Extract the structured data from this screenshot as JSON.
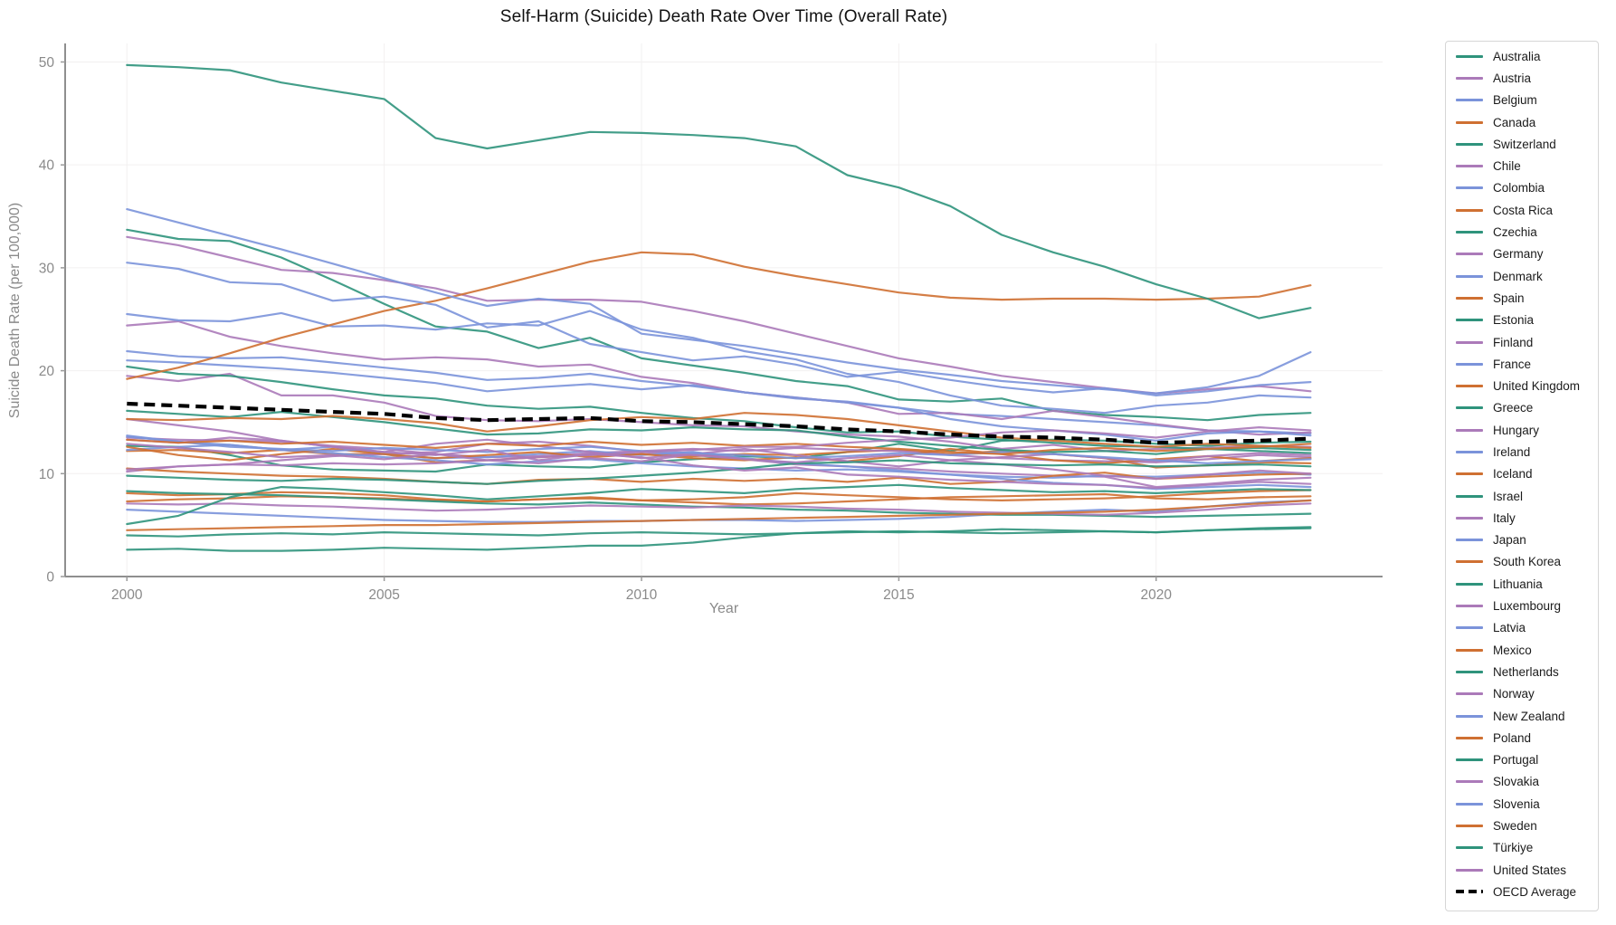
{
  "figure": {
    "title": "Self-Harm (Suicide) Death Rate Over Time (Overall Rate)",
    "xlabel": "Year",
    "ylabel": "Suicide Death Rate (per 100,000)"
  },
  "palette": {
    "teal": "#2f937c",
    "purple": "#ab7ab9",
    "blue": "#7b93da",
    "orange": "#cf7032",
    "oecd": "#000000"
  },
  "axis_style": {
    "spine_color": "#8f8f8f",
    "tick_color": "#9a9a9a",
    "tick_label_color": "#8a8a8a",
    "grid_color": "#f2f0f0"
  },
  "chart_data": {
    "type": "line",
    "title": "Self-Harm (Suicide) Death Rate Over Time (Overall Rate)",
    "xlabel": "Year",
    "ylabel": "Suicide Death Rate (per 100,000)",
    "grid": true,
    "legend_position": "right",
    "xlim": [
      1998.8,
      2024.4
    ],
    "ylim": [
      0,
      51.8
    ],
    "x_ticks": [
      2000,
      2005,
      2010,
      2015,
      2020
    ],
    "y_ticks": [
      0,
      10,
      20,
      30,
      40,
      50
    ],
    "x": [
      2000,
      2001,
      2002,
      2003,
      2004,
      2005,
      2006,
      2007,
      2008,
      2009,
      2010,
      2011,
      2012,
      2013,
      2014,
      2015,
      2016,
      2017,
      2018,
      2019,
      2020,
      2021,
      2022,
      2023
    ],
    "series": [
      {
        "name": "Australia",
        "color": "teal",
        "values": [
          12.7,
          12.6,
          11.8,
          10.8,
          10.4,
          10.3,
          10.2,
          10.9,
          10.7,
          10.6,
          11.1,
          11.4,
          11.7,
          11.5,
          12.1,
          12.9,
          12.2,
          13.2,
          13.3,
          13.2,
          12.9,
          12.7,
          13.0,
          13.1
        ]
      },
      {
        "name": "Austria",
        "color": "purple",
        "values": [
          19.5,
          19.0,
          19.7,
          17.6,
          17.6,
          16.9,
          15.6,
          15.2,
          15.1,
          15.3,
          15.0,
          14.7,
          14.6,
          14.1,
          13.8,
          13.6,
          13.1,
          12.4,
          12.8,
          12.2,
          12.4,
          12.5,
          12.7,
          12.6
        ]
      },
      {
        "name": "Belgium",
        "color": "blue",
        "values": [
          21.0,
          20.8,
          20.5,
          20.2,
          19.8,
          19.3,
          18.8,
          18.0,
          18.4,
          18.7,
          18.2,
          18.6,
          17.9,
          17.3,
          17.0,
          16.4,
          15.8,
          15.6,
          15.3,
          15.0,
          14.7,
          14.2,
          14.1,
          13.9
        ]
      },
      {
        "name": "Canada",
        "color": "orange",
        "values": [
          12.2,
          12.3,
          12.0,
          12.3,
          11.9,
          11.9,
          11.1,
          11.3,
          11.6,
          11.8,
          11.9,
          11.7,
          11.9,
          11.8,
          12.1,
          12.3,
          11.9,
          12.2,
          11.9,
          11.5,
          10.6,
          10.8,
          11.1,
          11.0
        ]
      },
      {
        "name": "Switzerland",
        "color": "teal",
        "values": [
          20.4,
          19.7,
          19.5,
          18.9,
          18.2,
          17.6,
          17.3,
          16.6,
          16.3,
          16.5,
          15.9,
          15.4,
          15.1,
          14.5,
          14.0,
          14.1,
          13.6,
          13.3,
          13.0,
          12.7,
          12.6,
          12.4,
          12.5,
          12.3
        ]
      },
      {
        "name": "Chile",
        "color": "purple",
        "values": [
          10.2,
          10.7,
          10.9,
          11.3,
          11.7,
          11.9,
          12.1,
          12.9,
          13.1,
          12.7,
          12.1,
          11.8,
          11.4,
          10.9,
          10.7,
          10.5,
          10.2,
          10.0,
          9.8,
          9.7,
          8.7,
          9.0,
          9.4,
          9.6
        ]
      },
      {
        "name": "Colombia",
        "color": "blue",
        "values": [
          6.5,
          6.3,
          6.1,
          5.9,
          5.7,
          5.5,
          5.4,
          5.3,
          5.3,
          5.4,
          5.4,
          5.5,
          5.5,
          5.4,
          5.5,
          5.6,
          5.8,
          6.1,
          6.3,
          6.5,
          6.3,
          6.8,
          7.2,
          7.4
        ]
      },
      {
        "name": "Costa Rica",
        "color": "orange",
        "values": [
          7.3,
          7.5,
          7.6,
          7.8,
          7.7,
          7.6,
          7.4,
          7.3,
          7.5,
          7.7,
          7.4,
          7.2,
          7.0,
          7.1,
          7.3,
          7.5,
          7.7,
          7.8,
          7.9,
          8.0,
          7.6,
          7.5,
          7.7,
          7.8
        ]
      },
      {
        "name": "Czechia",
        "color": "teal",
        "values": [
          16.1,
          15.8,
          15.5,
          16.0,
          15.5,
          15.0,
          14.4,
          13.8,
          13.9,
          14.3,
          14.2,
          14.5,
          14.3,
          14.2,
          13.6,
          13.1,
          12.7,
          12.3,
          12.1,
          12.2,
          11.9,
          12.4,
          12.2,
          12.0
        ]
      },
      {
        "name": "Germany",
        "color": "purple",
        "values": [
          13.5,
          13.3,
          13.2,
          13.1,
          12.7,
          12.4,
          11.9,
          11.6,
          11.7,
          12.0,
          12.2,
          12.4,
          12.2,
          12.5,
          12.3,
          12.2,
          11.8,
          11.5,
          11.3,
          11.2,
          11.1,
          11.4,
          11.8,
          11.6
        ]
      },
      {
        "name": "Denmark",
        "color": "blue",
        "values": [
          13.6,
          13.1,
          12.8,
          12.3,
          12.0,
          11.6,
          11.3,
          10.9,
          11.2,
          11.4,
          11.0,
          10.7,
          10.5,
          10.3,
          10.4,
          10.2,
          9.9,
          9.7,
          9.6,
          9.8,
          9.7,
          9.9,
          10.1,
          9.9
        ]
      },
      {
        "name": "Spain",
        "color": "orange",
        "values": [
          8.1,
          7.9,
          8.0,
          8.2,
          8.1,
          7.9,
          7.5,
          7.3,
          7.5,
          7.6,
          7.4,
          7.5,
          7.7,
          8.1,
          7.9,
          7.7,
          7.5,
          7.4,
          7.5,
          7.6,
          7.8,
          8.1,
          8.3,
          8.4
        ]
      },
      {
        "name": "Estonia",
        "color": "teal",
        "values": [
          33.7,
          32.8,
          32.6,
          31.0,
          28.8,
          26.5,
          24.3,
          23.8,
          22.2,
          23.2,
          21.2,
          20.5,
          19.8,
          19.0,
          18.5,
          17.2,
          17.0,
          17.3,
          16.1,
          15.7,
          15.5,
          15.2,
          15.7,
          15.9
        ]
      },
      {
        "name": "Finland",
        "color": "purple",
        "values": [
          24.4,
          24.8,
          23.3,
          22.4,
          21.7,
          21.1,
          21.3,
          21.1,
          20.4,
          20.6,
          19.4,
          18.8,
          17.9,
          17.4,
          16.9,
          15.8,
          15.9,
          15.3,
          16.1,
          15.5,
          14.8,
          14.2,
          13.8,
          14.0
        ]
      },
      {
        "name": "France",
        "color": "blue",
        "values": [
          21.9,
          21.4,
          21.2,
          21.3,
          20.8,
          20.3,
          19.8,
          19.1,
          19.3,
          19.7,
          19.0,
          18.5,
          17.9,
          17.4,
          16.9,
          16.4,
          15.3,
          14.6,
          14.2,
          13.8,
          13.2,
          13.9,
          14.1,
          13.7
        ]
      },
      {
        "name": "United Kingdom",
        "color": "orange",
        "values": [
          10.5,
          10.2,
          10.0,
          9.8,
          9.7,
          9.5,
          9.2,
          9.0,
          9.4,
          9.5,
          9.2,
          9.5,
          9.3,
          9.5,
          9.2,
          9.6,
          9.0,
          9.2,
          9.8,
          10.1,
          9.5,
          9.7,
          9.9,
          10.0
        ]
      },
      {
        "name": "Greece",
        "color": "teal",
        "values": [
          2.6,
          2.7,
          2.5,
          2.5,
          2.6,
          2.8,
          2.7,
          2.6,
          2.8,
          3.0,
          3.0,
          3.3,
          3.8,
          4.2,
          4.4,
          4.3,
          4.4,
          4.6,
          4.5,
          4.4,
          4.3,
          4.5,
          4.7,
          4.8
        ]
      },
      {
        "name": "Hungary",
        "color": "purple",
        "values": [
          33.0,
          32.2,
          31.0,
          29.8,
          29.5,
          28.8,
          28.0,
          26.8,
          26.9,
          26.9,
          26.7,
          25.8,
          24.8,
          23.6,
          22.4,
          21.2,
          20.4,
          19.5,
          18.9,
          18.3,
          17.8,
          18.2,
          18.5,
          18.0
        ]
      },
      {
        "name": "Ireland",
        "color": "blue",
        "values": [
          12.3,
          12.6,
          12.8,
          12.3,
          12.6,
          11.9,
          11.5,
          11.6,
          11.9,
          12.2,
          11.8,
          12.1,
          11.5,
          11.0,
          10.7,
          10.3,
          9.9,
          9.5,
          9.1,
          8.9,
          8.5,
          8.7,
          8.9,
          8.7
        ]
      },
      {
        "name": "Iceland",
        "color": "orange",
        "values": [
          12.6,
          11.8,
          11.3,
          11.9,
          12.4,
          11.9,
          11.5,
          11.8,
          12.1,
          11.6,
          11.9,
          11.5,
          11.3,
          11.6,
          11.2,
          11.7,
          12.4,
          11.9,
          11.3,
          11.0,
          11.4,
          11.7,
          11.2,
          11.5
        ]
      },
      {
        "name": "Israel",
        "color": "teal",
        "values": [
          8.3,
          8.1,
          8.0,
          7.9,
          7.7,
          7.5,
          7.3,
          7.1,
          7.0,
          7.2,
          7.0,
          6.8,
          6.7,
          6.5,
          6.4,
          6.2,
          6.1,
          6.0,
          6.0,
          5.9,
          5.8,
          5.9,
          6.0,
          6.1
        ]
      },
      {
        "name": "Italy",
        "color": "purple",
        "values": [
          7.1,
          7.0,
          7.1,
          6.9,
          6.8,
          6.6,
          6.4,
          6.5,
          6.7,
          6.9,
          6.8,
          6.7,
          6.9,
          6.8,
          6.6,
          6.5,
          6.3,
          6.2,
          6.1,
          6.0,
          6.2,
          6.5,
          6.9,
          7.1
        ]
      },
      {
        "name": "Japan",
        "color": "blue",
        "values": [
          25.5,
          24.9,
          24.8,
          25.6,
          24.3,
          24.4,
          24.0,
          24.6,
          24.4,
          25.8,
          24.0,
          23.2,
          21.9,
          21.1,
          19.7,
          18.9,
          17.6,
          16.6,
          16.3,
          15.9,
          16.6,
          16.9,
          17.6,
          17.4
        ]
      },
      {
        "name": "South Korea",
        "color": "orange",
        "values": [
          19.2,
          20.3,
          21.7,
          23.2,
          24.5,
          25.8,
          26.8,
          28.0,
          29.3,
          30.6,
          31.5,
          31.3,
          30.1,
          29.2,
          28.4,
          27.6,
          27.1,
          26.9,
          27.0,
          27.0,
          26.9,
          27.0,
          27.2,
          28.3
        ]
      },
      {
        "name": "Lithuania",
        "color": "teal",
        "values": [
          49.7,
          49.5,
          49.2,
          48.0,
          47.2,
          46.4,
          42.6,
          41.6,
          42.4,
          43.2,
          43.1,
          42.9,
          42.6,
          41.8,
          39.0,
          37.8,
          36.0,
          33.2,
          31.5,
          30.1,
          28.4,
          27.0,
          25.1,
          26.1
        ]
      },
      {
        "name": "Luxembourg",
        "color": "purple",
        "values": [
          15.3,
          14.7,
          14.1,
          13.2,
          12.6,
          12.1,
          12.9,
          13.3,
          12.7,
          12.1,
          11.5,
          11.9,
          12.4,
          11.8,
          11.2,
          10.7,
          11.3,
          10.9,
          10.4,
          9.8,
          9.5,
          9.9,
          10.3,
          10.0
        ]
      },
      {
        "name": "Latvia",
        "color": "blue",
        "values": [
          35.7,
          34.4,
          33.1,
          31.8,
          30.4,
          29.0,
          27.6,
          26.3,
          27.0,
          26.5,
          23.6,
          23.0,
          22.4,
          21.6,
          20.8,
          20.1,
          19.6,
          19.0,
          18.6,
          18.2,
          17.8,
          18.4,
          19.5,
          21.8
        ]
      },
      {
        "name": "Mexico",
        "color": "orange",
        "values": [
          4.5,
          4.6,
          4.7,
          4.8,
          4.9,
          5.0,
          5.0,
          5.1,
          5.2,
          5.3,
          5.4,
          5.5,
          5.6,
          5.7,
          5.8,
          5.9,
          6.0,
          6.1,
          6.2,
          6.3,
          6.5,
          6.8,
          7.1,
          7.4
        ]
      },
      {
        "name": "Netherlands",
        "color": "teal",
        "values": [
          9.8,
          9.6,
          9.4,
          9.3,
          9.5,
          9.4,
          9.2,
          9.0,
          9.3,
          9.5,
          9.8,
          10.1,
          10.5,
          11.0,
          11.1,
          11.3,
          11.0,
          10.9,
          10.8,
          10.9,
          10.7,
          10.8,
          10.9,
          10.7
        ]
      },
      {
        "name": "Norway",
        "color": "purple",
        "values": [
          12.9,
          12.5,
          12.1,
          11.6,
          11.8,
          11.4,
          11.9,
          11.3,
          11.0,
          11.5,
          11.2,
          11.9,
          11.4,
          11.1,
          11.5,
          11.8,
          11.3,
          11.6,
          11.9,
          11.5,
          11.2,
          11.7,
          12.0,
          11.8
        ]
      },
      {
        "name": "New Zealand",
        "color": "blue",
        "values": [
          13.7,
          13.1,
          12.6,
          12.4,
          12.2,
          12.5,
          12.3,
          12.1,
          12.4,
          12.6,
          12.2,
          12.0,
          11.8,
          11.5,
          11.7,
          12.0,
          11.8,
          12.1,
          11.9,
          11.6,
          11.3,
          11.0,
          11.2,
          11.4
        ]
      },
      {
        "name": "Poland",
        "color": "orange",
        "values": [
          15.3,
          15.2,
          15.4,
          15.3,
          15.6,
          15.3,
          14.9,
          14.1,
          14.6,
          15.2,
          15.5,
          15.3,
          15.9,
          15.7,
          15.3,
          14.7,
          14.1,
          13.5,
          13.2,
          12.9,
          12.6,
          12.9,
          12.7,
          12.5
        ]
      },
      {
        "name": "Portugal",
        "color": "teal",
        "values": [
          5.1,
          5.9,
          7.7,
          8.7,
          8.5,
          8.2,
          7.9,
          7.5,
          7.8,
          8.1,
          8.5,
          8.3,
          8.1,
          8.5,
          8.7,
          8.9,
          8.6,
          8.4,
          8.2,
          8.3,
          8.1,
          8.3,
          8.5,
          8.4
        ]
      },
      {
        "name": "Slovakia",
        "color": "purple",
        "values": [
          13.3,
          13.0,
          13.5,
          13.2,
          12.6,
          12.1,
          11.8,
          12.3,
          11.3,
          11.9,
          11.6,
          10.8,
          10.3,
          10.6,
          9.9,
          9.7,
          9.4,
          9.2,
          9.0,
          8.9,
          8.6,
          8.9,
          9.2,
          9.0
        ]
      },
      {
        "name": "Slovenia",
        "color": "blue",
        "values": [
          30.5,
          29.9,
          28.6,
          28.4,
          26.8,
          27.2,
          26.4,
          24.2,
          24.8,
          22.6,
          21.8,
          21.0,
          21.4,
          20.6,
          19.4,
          19.9,
          19.1,
          18.4,
          17.9,
          18.3,
          17.6,
          18.0,
          18.6,
          18.9
        ]
      },
      {
        "name": "Sweden",
        "color": "orange",
        "values": [
          13.3,
          13.0,
          13.2,
          12.9,
          13.1,
          12.8,
          12.5,
          12.9,
          12.7,
          13.1,
          12.8,
          13.0,
          12.7,
          12.9,
          12.6,
          12.4,
          12.1,
          11.9,
          12.3,
          12.5,
          12.2,
          12.4,
          12.6,
          12.9
        ]
      },
      {
        "name": "Türkiye",
        "color": "teal",
        "values": [
          4.0,
          3.9,
          4.1,
          4.2,
          4.1,
          4.3,
          4.2,
          4.1,
          4.0,
          4.2,
          4.3,
          4.2,
          4.1,
          4.2,
          4.3,
          4.4,
          4.3,
          4.2,
          4.3,
          4.4,
          4.3,
          4.5,
          4.6,
          4.7
        ]
      },
      {
        "name": "United States",
        "color": "purple",
        "values": [
          10.4,
          10.7,
          10.9,
          10.8,
          11.0,
          10.9,
          11.0,
          11.3,
          11.6,
          11.8,
          12.1,
          12.3,
          12.6,
          12.6,
          13.0,
          13.3,
          13.5,
          14.0,
          14.2,
          13.9,
          13.5,
          14.1,
          14.5,
          14.2
        ]
      },
      {
        "name": "OECD Average",
        "color": "oecd",
        "dash": true,
        "values": [
          16.8,
          16.6,
          16.4,
          16.2,
          16.0,
          15.8,
          15.4,
          15.2,
          15.3,
          15.4,
          15.1,
          15.0,
          14.8,
          14.6,
          14.3,
          14.1,
          13.8,
          13.6,
          13.5,
          13.3,
          13.0,
          13.1,
          13.2,
          13.4
        ]
      }
    ]
  }
}
